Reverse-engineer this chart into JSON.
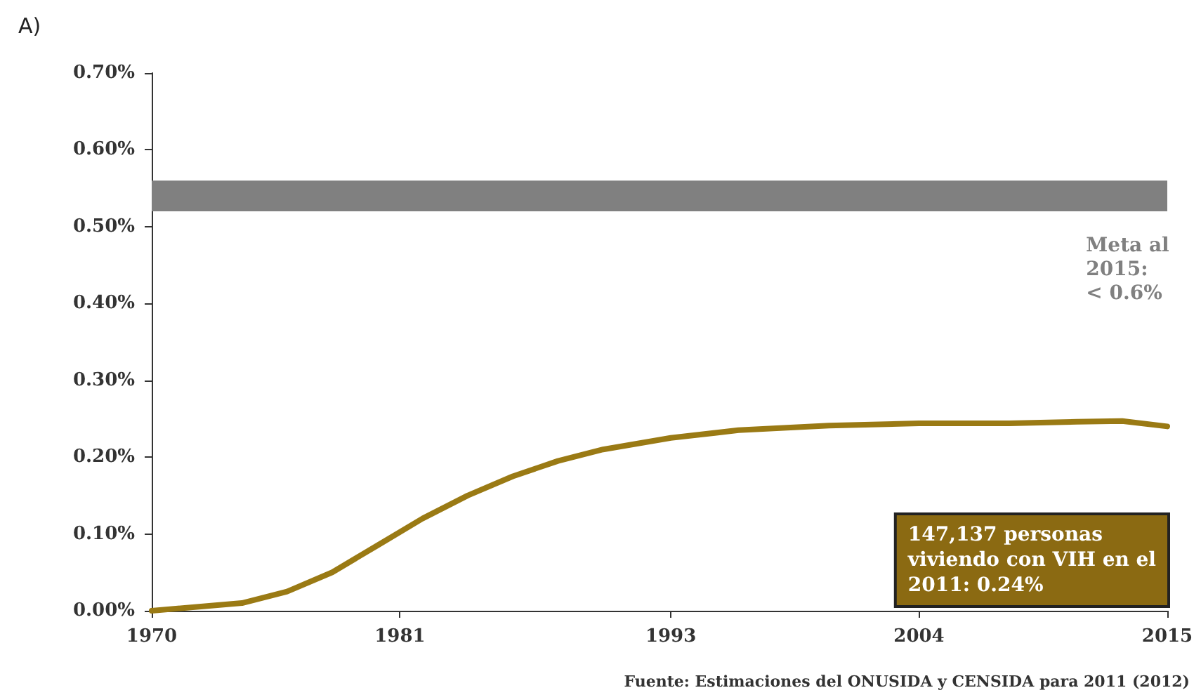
{
  "chart_data": {
    "type": "line",
    "title": "A)",
    "x": [
      1970,
      1972,
      1974,
      1976,
      1978,
      1980,
      1982,
      1984,
      1986,
      1988,
      1990,
      1993,
      1996,
      2000,
      2004,
      2008,
      2011,
      2013,
      2015
    ],
    "series": [
      {
        "color": "#9a7a14",
        "values": [
          0,
          0.005,
          0.01,
          0.025,
          0.05,
          0.085,
          0.12,
          0.15,
          0.175,
          0.195,
          0.21,
          0.225,
          0.235,
          0.241,
          0.244,
          0.244,
          0.246,
          0.247,
          0.24
        ]
      }
    ],
    "xlim": [
      1970,
      2015
    ],
    "xticks": [
      1970,
      1981,
      1993,
      2004,
      2015
    ],
    "ylim": [
      0,
      0.7
    ],
    "yticks": [
      {
        "value": 0,
        "label": "0.00%"
      },
      {
        "value": 0.1,
        "label": "0.10%"
      },
      {
        "value": 0.2,
        "label": "0.20%"
      },
      {
        "value": 0.3,
        "label": "0.30%"
      },
      {
        "value": 0.4,
        "label": "0.40%"
      },
      {
        "value": 0.5,
        "label": "0.50%"
      },
      {
        "value": 0.6,
        "label": "0.60%"
      },
      {
        "value": 0.7,
        "label": "0.70%"
      }
    ],
    "bands": [
      {
        "axis": "y",
        "from": 0.52,
        "to": 0.56,
        "label": "Meta al\n2015:\n< 0.6%",
        "color": "#808080"
      }
    ],
    "annotations": [
      "147,137 personas\nviviendo con VIH en el\n2011: 0.24%",
      "Fuente: Estimaciones del ONUSIDA y CENSIDA para 2011 (2012)"
    ],
    "grid": false,
    "marker": "none",
    "line_style": "solid"
  }
}
